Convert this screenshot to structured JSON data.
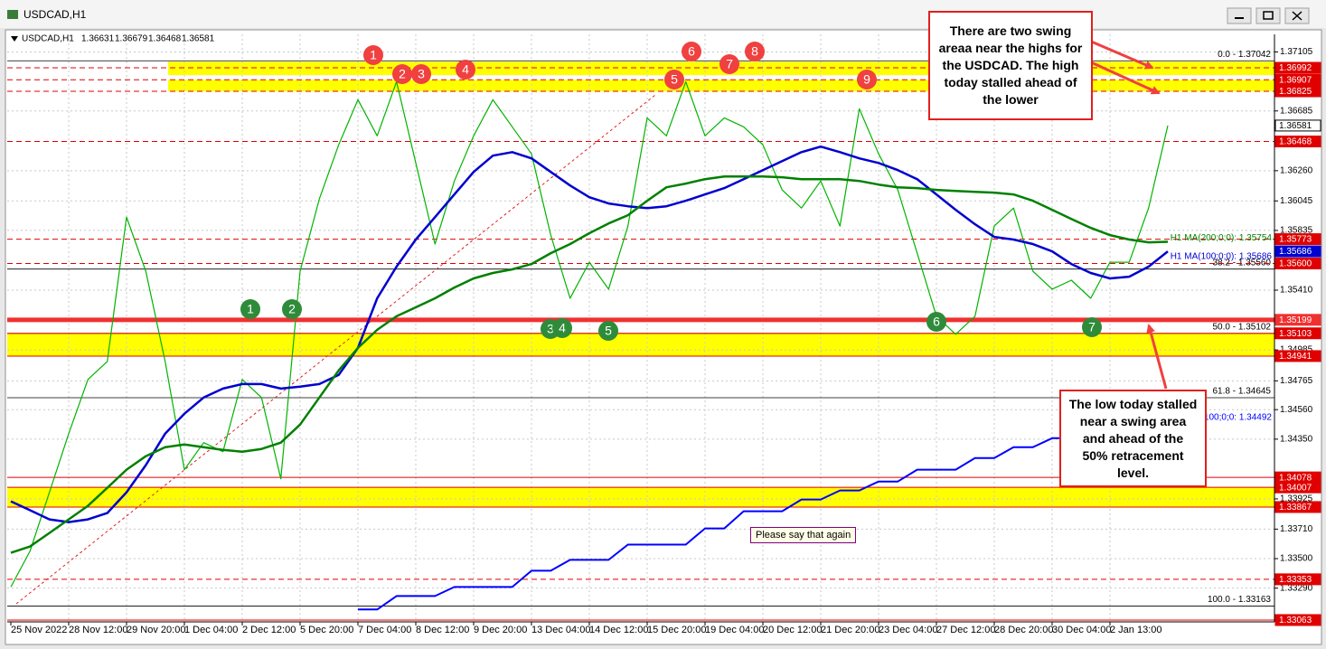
{
  "window": {
    "title": "USDCAD,H1"
  },
  "chart_data": {
    "type": "line",
    "header": {
      "symbol": "USDCAD,H1",
      "ohlc": [
        1.36631,
        1.36679,
        1.36468,
        1.36581
      ]
    },
    "categories": [
      "25 Nov 2022",
      null,
      null,
      "28 Nov 12:00",
      null,
      null,
      "29 Nov 20:00",
      null,
      null,
      "1 Dec 04:00",
      null,
      null,
      "2 Dec 12:00",
      null,
      null,
      "5 Dec 20:00",
      null,
      null,
      "7 Dec 04:00",
      null,
      null,
      "8 Dec 12:00",
      null,
      null,
      "9 Dec 20:00",
      null,
      null,
      "13 Dec 04:00",
      null,
      null,
      "14 Dec 12:00",
      null,
      null,
      "15 Dec 20:00",
      null,
      null,
      "19 Dec 04:00",
      null,
      null,
      "20 Dec 12:00",
      null,
      null,
      "21 Dec 20:00",
      null,
      null,
      "23 Dec 04:00",
      null,
      null,
      "27 Dec 12:00",
      null,
      null,
      "28 Dec 20:00",
      null,
      null,
      "30 Dec 04:00",
      null,
      null,
      "2 Jan 13:00",
      null,
      null,
      null
    ],
    "series": [
      {
        "color": "#00b400",
        "values": [
          1.33298,
          1.33555,
          1.33972,
          1.34389,
          1.34775,
          1.34903,
          1.3593,
          1.35545,
          1.34903,
          1.34133,
          1.34325,
          1.34261,
          1.34775,
          1.34646,
          1.34068,
          1.35545,
          1.36059,
          1.36444,
          1.36765,
          1.36508,
          1.36893,
          1.36315,
          1.35738,
          1.36187,
          1.36508,
          1.36765,
          1.36572,
          1.3638,
          1.35802,
          1.35352,
          1.35609,
          1.35417,
          1.35866,
          1.36636,
          1.36508,
          1.36893,
          1.36508,
          1.36636,
          1.36572,
          1.36444,
          1.36123,
          1.35994,
          1.36187,
          1.35866,
          1.36701,
          1.3638,
          1.36123,
          1.35673,
          1.35224,
          1.35096,
          1.35224,
          1.35866,
          1.35994,
          1.35545,
          1.35417,
          1.35481,
          1.35352,
          1.35609,
          1.35609,
          1.35994,
          1.36581
        ]
      },
      {
        "name": "H1 MA(100;0;0): 1.35686",
        "color": "#0000d0",
        "values": [
          1.33908,
          1.33844,
          1.33779,
          1.3376,
          1.33779,
          1.33824,
          1.33972,
          1.34165,
          1.34389,
          1.34531,
          1.34646,
          1.3471,
          1.34742,
          1.34742,
          1.3471,
          1.34723,
          1.34742,
          1.34807,
          1.34999,
          1.35352,
          1.35577,
          1.3577,
          1.3593,
          1.36091,
          1.36251,
          1.36367,
          1.36392,
          1.36348,
          1.36251,
          1.36155,
          1.36071,
          1.36027,
          1.36007,
          1.35994,
          1.36007,
          1.36046,
          1.36091,
          1.36136,
          1.362,
          1.36264,
          1.36328,
          1.36392,
          1.36431,
          1.36392,
          1.36348,
          1.36315,
          1.36264,
          1.362,
          1.36091,
          1.35982,
          1.35879,
          1.35789,
          1.3577,
          1.35738,
          1.35686,
          1.35596,
          1.35532,
          1.35494,
          1.35506,
          1.35577,
          1.35686
        ]
      },
      {
        "name": "H1 MA(200;0;0): 1.35754",
        "color": "#008000",
        "values": [
          1.33542,
          1.33587,
          1.33683,
          1.33779,
          1.33876,
          1.34004,
          1.34133,
          1.34229,
          1.34293,
          1.34312,
          1.34293,
          1.34274,
          1.34261,
          1.3428,
          1.34325,
          1.34454,
          1.34646,
          1.34839,
          1.34999,
          1.35128,
          1.35224,
          1.35288,
          1.35352,
          1.35429,
          1.35494,
          1.35532,
          1.35558,
          1.35596,
          1.35673,
          1.35738,
          1.35815,
          1.35885,
          1.35943,
          1.36046,
          1.36142,
          1.36168,
          1.362,
          1.36219,
          1.36219,
          1.36219,
          1.36213,
          1.362,
          1.362,
          1.362,
          1.36187,
          1.36161,
          1.36142,
          1.36136,
          1.36123,
          1.36116,
          1.3611,
          1.36104,
          1.36091,
          1.36046,
          1.35982,
          1.35917,
          1.35853,
          1.35802,
          1.3577,
          1.3575,
          1.35754
        ]
      },
      {
        "name": ":100;0;0: 1.34492",
        "color": "#0000ff",
        "values": [
          null,
          null,
          null,
          null,
          null,
          null,
          null,
          null,
          null,
          null,
          null,
          null,
          null,
          null,
          null,
          null,
          null,
          null,
          1.33138,
          1.33138,
          1.33234,
          1.33234,
          1.33234,
          1.33298,
          1.33298,
          1.33298,
          1.33298,
          1.33414,
          1.33414,
          1.33491,
          1.33491,
          1.33491,
          1.336,
          1.336,
          1.336,
          1.336,
          1.33715,
          1.33715,
          1.33837,
          1.33837,
          1.33837,
          1.33921,
          1.33921,
          1.33985,
          1.33985,
          1.34049,
          1.34049,
          1.34133,
          1.34133,
          1.34133,
          1.34216,
          1.34216,
          1.34293,
          1.34293,
          1.34357,
          1.34357,
          1.34357,
          1.34357,
          1.34492,
          1.34492,
          1.34492
        ]
      }
    ],
    "ylim": [
      1.3305,
      1.3723
    ],
    "yticks": [
      1.37105,
      1.36685,
      {
        "value": 1.3626,
        "label": "1.36260"
      },
      1.36045,
      1.35835,
      {
        "value": 1.3541,
        "label": "1.35410"
      },
      1.34985,
      1.34765,
      {
        "value": 1.3456,
        "label": "1.34560"
      },
      {
        "value": 1.3435,
        "label": "1.34350"
      },
      1.33925,
      {
        "value": 1.3371,
        "label": "1.33710"
      },
      {
        "value": 1.335,
        "label": "1.33500"
      },
      {
        "value": 1.3329,
        "label": "1.33290"
      }
    ],
    "grid": true,
    "levels": [
      {
        "value": 1.36992,
        "color": "#e00000",
        "style": "dashed"
      },
      {
        "value": 1.36907,
        "color": "#e00000",
        "style": "dashed"
      },
      {
        "value": 1.36825,
        "color": "#e00000",
        "style": "dashed"
      },
      {
        "value": 1.36468,
        "color": "#e00000",
        "style": "dashed"
      },
      {
        "value": 1.35773,
        "color": "#e00000",
        "style": "dashed"
      },
      {
        "value": 1.356,
        "label": "1.35600",
        "color": "#e00000",
        "style": "dashed"
      },
      {
        "value": 1.35199,
        "color": "#f03030",
        "style": "thick"
      },
      {
        "value": 1.35103,
        "color": "#e00000",
        "style": "solid"
      },
      {
        "value": 1.34941,
        "color": "#e00000",
        "style": "solid"
      },
      {
        "value": 1.34078,
        "color": "#e00000",
        "style": "solid"
      },
      {
        "value": 1.34007,
        "color": "#e00000",
        "style": "solid"
      },
      {
        "value": 1.33867,
        "color": "#e00000",
        "style": "solid"
      },
      {
        "value": 1.33353,
        "color": "#e00000",
        "style": "dashed"
      },
      {
        "value": 1.33063,
        "color": "#e00000",
        "style": "solid"
      }
    ],
    "zones": [
      [
        1.37035,
        1.3694
      ],
      [
        1.36907,
        1.36825
      ],
      [
        1.35103,
        1.34941
      ],
      [
        1.34007,
        1.33867
      ]
    ],
    "fib_levels": [
      {
        "value": 1.37042,
        "label": "0.0 - 1.37042"
      },
      {
        "value": 1.3556,
        "label": "38.2 - 1.35560"
      },
      {
        "value": 1.35102,
        "label": "50.0 - 1.35102"
      },
      {
        "value": 1.34645,
        "label": "61.8 - 1.34645"
      },
      {
        "value": 1.33163,
        "label": "100.0 - 1.33163"
      }
    ],
    "swing_highs": [
      "1",
      "2",
      "3",
      "4",
      "5",
      "6",
      "7",
      "8",
      "9"
    ],
    "swing_lows": [
      "1",
      "2",
      "3",
      "4",
      "5",
      "6",
      "7"
    ],
    "annotations": [
      "There are two swing areaa near the highs for the USDCAD.  The high today stalled ahead of the lower",
      "The low today stalled near a swing area  and ahead of the 50% retracement level.",
      "Please say that again"
    ]
  }
}
